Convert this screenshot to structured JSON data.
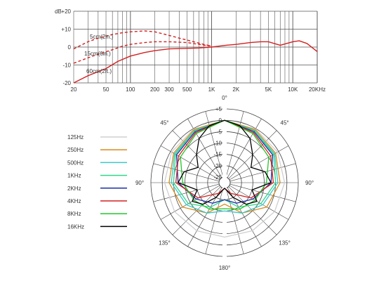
{
  "chart_data": [
    {
      "type": "line",
      "x_scale": "log",
      "xlim": [
        20,
        20000
      ],
      "ylim": [
        -20,
        20
      ],
      "ylabel": "dB",
      "grid": true,
      "x_ticks": [
        {
          "value": 20,
          "label": "20"
        },
        {
          "value": 50,
          "label": "50"
        },
        {
          "value": 100,
          "label": "100"
        },
        {
          "value": 200,
          "label": "200"
        },
        {
          "value": 300,
          "label": "300"
        },
        {
          "value": 500,
          "label": "500"
        },
        {
          "value": 1000,
          "label": "1K"
        },
        {
          "value": 2000,
          "label": "2K"
        },
        {
          "value": 5000,
          "label": "5K"
        },
        {
          "value": 10000,
          "label": "10K"
        },
        {
          "value": 20000,
          "label": "20KHz"
        }
      ],
      "y_ticks": [
        {
          "value": 20,
          "label": "+20"
        },
        {
          "value": 10,
          "label": "+10"
        },
        {
          "value": 0,
          "label": "0"
        },
        {
          "value": -10,
          "label": "-10"
        },
        {
          "value": -20,
          "label": "-20"
        }
      ],
      "series": [
        {
          "name": "5cm(2in.)",
          "color": "#d42020",
          "dash": true,
          "x": [
            20,
            30,
            40,
            60,
            80,
            100,
            150,
            200,
            300,
            400,
            600,
            800,
            1000
          ],
          "y": [
            -1,
            3,
            5,
            7,
            8,
            8.5,
            9,
            8.5,
            6.5,
            5,
            3,
            1.5,
            0.5
          ]
        },
        {
          "name": "15cm(6in.)",
          "color": "#d42020",
          "dash": true,
          "x": [
            20,
            30,
            40,
            60,
            80,
            100,
            150,
            200,
            300,
            500,
            700,
            1000
          ],
          "y": [
            -9,
            -6,
            -4,
            -1.5,
            0.5,
            1.5,
            2.5,
            3,
            3,
            2.5,
            1.5,
            0.5
          ]
        },
        {
          "name": "60cm(2ft.)",
          "color": "#d42020",
          "dash": false,
          "x": [
            20,
            30,
            50,
            70,
            100,
            150,
            200,
            300,
            500,
            700,
            1000,
            1500,
            2000,
            3000,
            4000,
            5000,
            7000,
            10000,
            12000,
            15000,
            20000
          ],
          "y": [
            -20,
            -16,
            -12,
            -8,
            -5,
            -3,
            -2,
            -1,
            -0.7,
            -0.5,
            0,
            1,
            1.5,
            2.5,
            3,
            3,
            1,
            3,
            3.5,
            2,
            -2.5
          ]
        }
      ]
    },
    {
      "type": "polar",
      "r_ticks": [
        "+5",
        "0",
        "-5",
        "-10",
        "-15",
        "-20",
        "-25"
      ],
      "r_values": [
        5,
        0,
        -5,
        -10,
        -15,
        -20,
        -25
      ],
      "angle_labels": [
        {
          "angle": 0,
          "label": "0°"
        },
        {
          "angle": 45,
          "label": "45°"
        },
        {
          "angle": 90,
          "label": "90°"
        },
        {
          "angle": 135,
          "label": "135°"
        },
        {
          "angle": 180,
          "label": "180°"
        },
        {
          "angle": 225,
          "label": "135°"
        },
        {
          "angle": 270,
          "label": "90°"
        },
        {
          "angle": 315,
          "label": "45°"
        }
      ],
      "series": [
        {
          "name": "125Hz",
          "color": "#cfcfcf",
          "angles": [
            0,
            30,
            60,
            90,
            120,
            150,
            180
          ],
          "db": [
            0,
            -0.2,
            -0.5,
            -1,
            -2,
            -3,
            -3.5
          ]
        },
        {
          "name": "250Hz",
          "color": "#d88a1c",
          "angles": [
            0,
            30,
            60,
            90,
            120,
            150,
            180
          ],
          "db": [
            0,
            -0.5,
            -1.5,
            -3,
            -6,
            -12,
            -18
          ]
        },
        {
          "name": "500Hz",
          "color": "#3cc8c8",
          "angles": [
            0,
            30,
            60,
            90,
            120,
            150,
            180
          ],
          "db": [
            0,
            -1,
            -2,
            -4,
            -8,
            -12,
            -15
          ]
        },
        {
          "name": "1KHz",
          "color": "#2ed88a",
          "angles": [
            0,
            30,
            60,
            90,
            120,
            150,
            180
          ],
          "db": [
            0,
            -1,
            -2.5,
            -5,
            -9,
            -15,
            -20
          ]
        },
        {
          "name": "2KHz",
          "color": "#1a2ea8",
          "angles": [
            0,
            30,
            60,
            90,
            120,
            150,
            180
          ],
          "db": [
            0,
            -1.5,
            -3,
            -7,
            -13,
            -17,
            -20
          ]
        },
        {
          "name": "4KHz",
          "color": "#d42020",
          "angles": [
            0,
            30,
            60,
            90,
            120,
            150,
            180
          ],
          "db": [
            0,
            -2,
            -4,
            -6,
            -14,
            -22,
            -25
          ]
        },
        {
          "name": "8KHz",
          "color": "#22c82a",
          "angles": [
            0,
            30,
            60,
            90,
            120,
            150,
            180
          ],
          "db": [
            0,
            -2.5,
            -5,
            -9,
            -12,
            -14,
            -16
          ]
        },
        {
          "name": "16KHz",
          "color": "#000000",
          "angles": [
            0,
            15,
            30,
            45,
            60,
            75,
            90,
            105,
            120,
            135,
            150,
            165,
            180
          ],
          "db": [
            0,
            -1.5,
            -5,
            -10,
            -14,
            -9,
            -7,
            -15,
            -11,
            -14,
            -20,
            -24,
            -25
          ]
        }
      ]
    }
  ]
}
